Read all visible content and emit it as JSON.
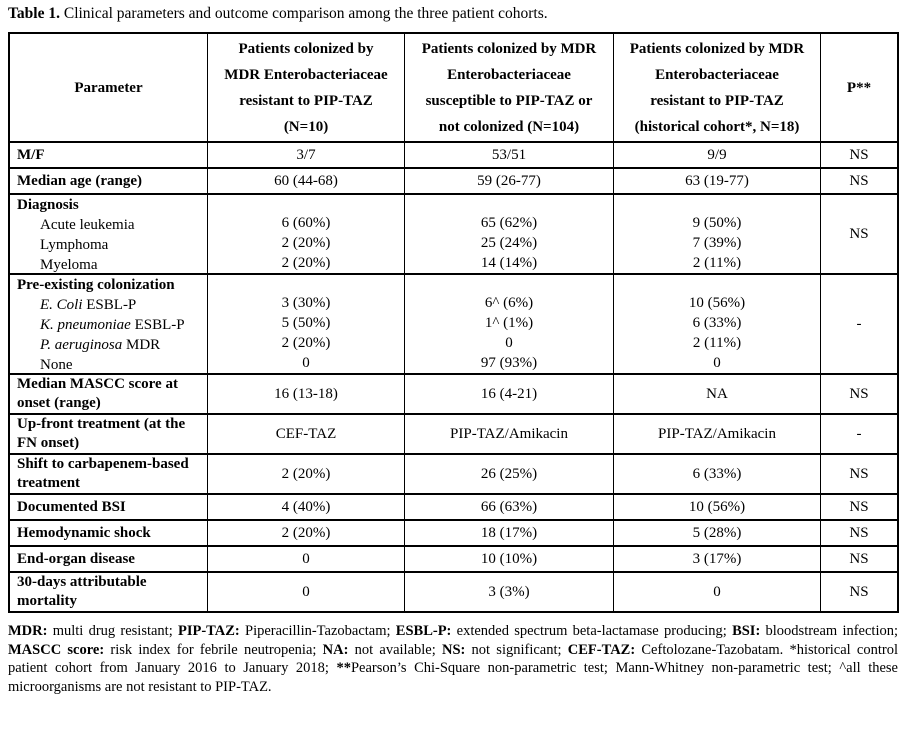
{
  "title": {
    "label": "Table 1.",
    "text": " Clinical parameters and outcome comparison among the three patient cohorts."
  },
  "table": {
    "headers": {
      "param": "Parameter",
      "cohort1": {
        "lines": [
          "Patients colonized by",
          "MDR Enterobacteriaceae",
          "resistant to PIP-TAZ",
          "(N=10)"
        ]
      },
      "cohort2": {
        "lines": [
          "Patients colonized by MDR",
          "Enterobacteriaceae",
          "susceptible to PIP-TAZ or",
          "not colonized (N=104)"
        ]
      },
      "cohort3": {
        "lines": [
          "Patients colonized by MDR",
          "Enterobacteriaceae",
          "resistant to PIP-TAZ",
          "(historical cohort*, N=18)"
        ]
      },
      "p": "P**"
    },
    "rows": [
      {
        "param": "M/F",
        "v1": "3/7",
        "v2": "53/51",
        "v3": "9/9",
        "p": "NS"
      },
      {
        "param": "Median age (range)",
        "v1": "60 (44-68)",
        "v2": "59 (26-77)",
        "v3": "63 (19-77)",
        "p": "NS"
      },
      {
        "header": "Diagnosis",
        "p": "NS",
        "items": [
          {
            "label": "Acute leukemia",
            "v1": "6 (60%)",
            "v2": "65 (62%)",
            "v3": "9 (50%)"
          },
          {
            "label": "Lymphoma",
            "v1": "2 (20%)",
            "v2": "25 (24%)",
            "v3": "7 (39%)"
          },
          {
            "label": "Myeloma",
            "v1": "2 (20%)",
            "v2": "14 (14%)",
            "v3": "2 (11%)"
          }
        ]
      },
      {
        "header": "Pre-existing colonization",
        "p": "-",
        "items": [
          {
            "label_italic": "E. Coli",
            "label_rest": " ESBL-P",
            "v1": "3 (30%)",
            "v2": "6^ (6%)",
            "v3": "10 (56%)"
          },
          {
            "label_italic": "K. pneumoniae",
            "label_rest": " ESBL-P",
            "v1": "5 (50%)",
            "v2": "1^ (1%)",
            "v3": "6 (33%)"
          },
          {
            "label_italic": "P. aeruginosa",
            "label_rest": " MDR",
            "v1": "2 (20%)",
            "v2": "0",
            "v3": "2 (11%)"
          },
          {
            "label": "None",
            "v1": "0",
            "v2": "97 (93%)",
            "v3": "0"
          }
        ]
      },
      {
        "param": "Median MASCC score at onset (range)",
        "v1": "16 (13-18)",
        "v2": "16 (4-21)",
        "v3": "NA",
        "p": "NS"
      },
      {
        "param": "Up-front treatment (at the FN onset)",
        "v1": "CEF-TAZ",
        "v2": "PIP-TAZ/Amikacin",
        "v3": "PIP-TAZ/Amikacin",
        "p": "-"
      },
      {
        "param": "Shift to carbapenem-based treatment",
        "v1": "2 (20%)",
        "v2": "26 (25%)",
        "v3": "6 (33%)",
        "p": "NS"
      },
      {
        "param": "Documented BSI",
        "v1": "4 (40%)",
        "v2": "66 (63%)",
        "v3": "10 (56%)",
        "p": "NS"
      },
      {
        "param": "Hemodynamic shock",
        "v1": "2 (20%)",
        "v2": "18 (17%)",
        "v3": "5 (28%)",
        "p": "NS"
      },
      {
        "param": "End-organ disease",
        "v1": "0",
        "v2": "10 (10%)",
        "v3": "3 (17%)",
        "p": "NS"
      },
      {
        "param": "30-days attributable mortality",
        "v1": "0",
        "v2": "3 (3%)",
        "v3": "0",
        "p": "NS"
      }
    ]
  },
  "footnote": {
    "segments": [
      {
        "text": "MDR:",
        "bold": true
      },
      {
        "text": " multi drug resistant; ",
        "bold": false
      },
      {
        "text": "PIP-TAZ:",
        "bold": true
      },
      {
        "text": " Piperacillin-Tazobactam; ",
        "bold": false
      },
      {
        "text": "ESBL-P:",
        "bold": true
      },
      {
        "text": " extended spectrum beta-lactamase producing; ",
        "bold": false
      },
      {
        "text": "BSI:",
        "bold": true
      },
      {
        "text": " bloodstream infection; ",
        "bold": false
      },
      {
        "text": "MASCC score:",
        "bold": true
      },
      {
        "text": " risk index for febrile neutropenia; ",
        "bold": false
      },
      {
        "text": "NA:",
        "bold": true
      },
      {
        "text": " not available; ",
        "bold": false
      },
      {
        "text": "NS:",
        "bold": true
      },
      {
        "text": " not significant; ",
        "bold": false
      },
      {
        "text": "CEF-TAZ:",
        "bold": true
      },
      {
        "text": " Ceftolozane-Tazobatam. *historical control patient cohort from January 2016 to January 2018; ",
        "bold": false
      },
      {
        "text": "**",
        "bold": true
      },
      {
        "text": "Pearson’s Chi-Square non-parametric test; Mann-Whitney non-parametric test; ^all these microorganisms are not resistant to PIP-TAZ.",
        "bold": false
      }
    ]
  }
}
